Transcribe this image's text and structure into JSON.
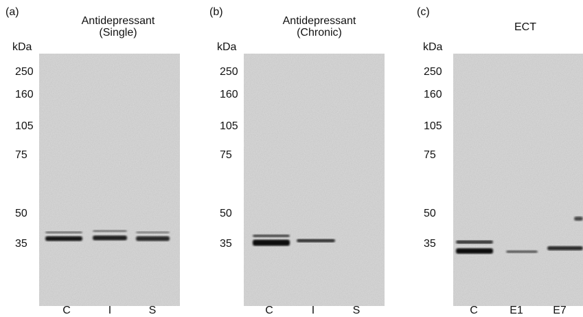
{
  "panels": [
    {
      "letter": "(a)",
      "title": [
        "Antidepressant",
        "(Single)"
      ],
      "unit": "kDa",
      "markers": [
        "250",
        "160",
        "105",
        "75",
        "50",
        "35"
      ],
      "lanes": [
        "C",
        "I",
        "S"
      ]
    },
    {
      "letter": "(b)",
      "title": [
        "Antidepressant",
        "(Chronic)"
      ],
      "unit": "kDa",
      "markers": [
        "250",
        "160",
        "105",
        "75",
        "50",
        "35"
      ],
      "lanes": [
        "C",
        "I",
        "S"
      ]
    },
    {
      "letter": "(c)",
      "title": [
        "ECT"
      ],
      "unit": "kDa",
      "markers": [
        "250",
        "160",
        "105",
        "75",
        "50",
        "35"
      ],
      "lanes": [
        "C",
        "E1",
        "E7"
      ]
    }
  ]
}
